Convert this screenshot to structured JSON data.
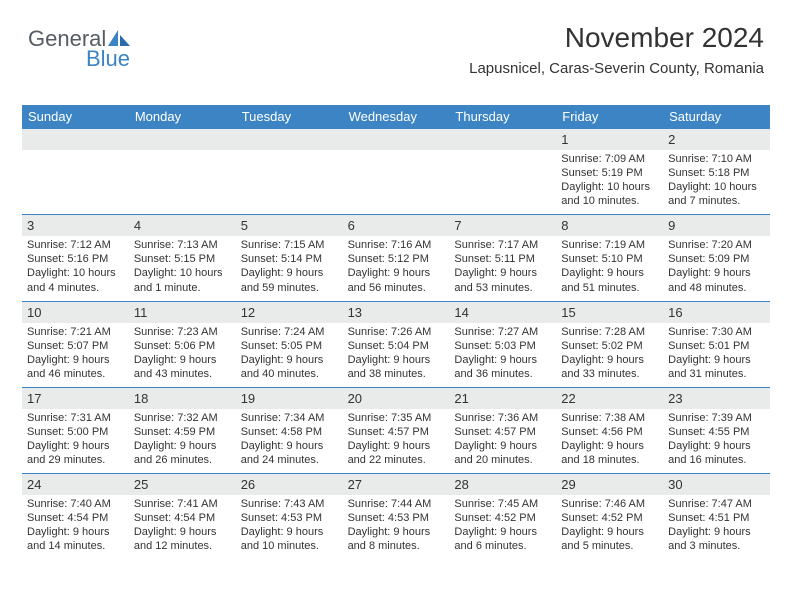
{
  "brand": {
    "name1": "General",
    "name2": "Blue",
    "accent": "#3d84c4",
    "textcolor": "#555c63"
  },
  "title": "November 2024",
  "subtitle": "Lapusnicel, Caras-Severin County, Romania",
  "day_headers": [
    "Sunday",
    "Monday",
    "Tuesday",
    "Wednesday",
    "Thursday",
    "Friday",
    "Saturday"
  ],
  "colors": {
    "header_bg": "#3d84c4",
    "header_text": "#ffffff",
    "daynum_bg": "#e9eaea",
    "rule": "#3d84c4",
    "text": "#333333"
  },
  "font_sizes": {
    "title": 28,
    "subtitle": 15,
    "dayhead": 13,
    "daynum": 13,
    "details": 11
  },
  "weeks": [
    [
      {
        "n": "",
        "sr": "",
        "ss": "",
        "dl1": "",
        "dl2": ""
      },
      {
        "n": "",
        "sr": "",
        "ss": "",
        "dl1": "",
        "dl2": ""
      },
      {
        "n": "",
        "sr": "",
        "ss": "",
        "dl1": "",
        "dl2": ""
      },
      {
        "n": "",
        "sr": "",
        "ss": "",
        "dl1": "",
        "dl2": ""
      },
      {
        "n": "",
        "sr": "",
        "ss": "",
        "dl1": "",
        "dl2": ""
      },
      {
        "n": "1",
        "sr": "Sunrise: 7:09 AM",
        "ss": "Sunset: 5:19 PM",
        "dl1": "Daylight: 10 hours",
        "dl2": "and 10 minutes."
      },
      {
        "n": "2",
        "sr": "Sunrise: 7:10 AM",
        "ss": "Sunset: 5:18 PM",
        "dl1": "Daylight: 10 hours",
        "dl2": "and 7 minutes."
      }
    ],
    [
      {
        "n": "3",
        "sr": "Sunrise: 7:12 AM",
        "ss": "Sunset: 5:16 PM",
        "dl1": "Daylight: 10 hours",
        "dl2": "and 4 minutes."
      },
      {
        "n": "4",
        "sr": "Sunrise: 7:13 AM",
        "ss": "Sunset: 5:15 PM",
        "dl1": "Daylight: 10 hours",
        "dl2": "and 1 minute."
      },
      {
        "n": "5",
        "sr": "Sunrise: 7:15 AM",
        "ss": "Sunset: 5:14 PM",
        "dl1": "Daylight: 9 hours",
        "dl2": "and 59 minutes."
      },
      {
        "n": "6",
        "sr": "Sunrise: 7:16 AM",
        "ss": "Sunset: 5:12 PM",
        "dl1": "Daylight: 9 hours",
        "dl2": "and 56 minutes."
      },
      {
        "n": "7",
        "sr": "Sunrise: 7:17 AM",
        "ss": "Sunset: 5:11 PM",
        "dl1": "Daylight: 9 hours",
        "dl2": "and 53 minutes."
      },
      {
        "n": "8",
        "sr": "Sunrise: 7:19 AM",
        "ss": "Sunset: 5:10 PM",
        "dl1": "Daylight: 9 hours",
        "dl2": "and 51 minutes."
      },
      {
        "n": "9",
        "sr": "Sunrise: 7:20 AM",
        "ss": "Sunset: 5:09 PM",
        "dl1": "Daylight: 9 hours",
        "dl2": "and 48 minutes."
      }
    ],
    [
      {
        "n": "10",
        "sr": "Sunrise: 7:21 AM",
        "ss": "Sunset: 5:07 PM",
        "dl1": "Daylight: 9 hours",
        "dl2": "and 46 minutes."
      },
      {
        "n": "11",
        "sr": "Sunrise: 7:23 AM",
        "ss": "Sunset: 5:06 PM",
        "dl1": "Daylight: 9 hours",
        "dl2": "and 43 minutes."
      },
      {
        "n": "12",
        "sr": "Sunrise: 7:24 AM",
        "ss": "Sunset: 5:05 PM",
        "dl1": "Daylight: 9 hours",
        "dl2": "and 40 minutes."
      },
      {
        "n": "13",
        "sr": "Sunrise: 7:26 AM",
        "ss": "Sunset: 5:04 PM",
        "dl1": "Daylight: 9 hours",
        "dl2": "and 38 minutes."
      },
      {
        "n": "14",
        "sr": "Sunrise: 7:27 AM",
        "ss": "Sunset: 5:03 PM",
        "dl1": "Daylight: 9 hours",
        "dl2": "and 36 minutes."
      },
      {
        "n": "15",
        "sr": "Sunrise: 7:28 AM",
        "ss": "Sunset: 5:02 PM",
        "dl1": "Daylight: 9 hours",
        "dl2": "and 33 minutes."
      },
      {
        "n": "16",
        "sr": "Sunrise: 7:30 AM",
        "ss": "Sunset: 5:01 PM",
        "dl1": "Daylight: 9 hours",
        "dl2": "and 31 minutes."
      }
    ],
    [
      {
        "n": "17",
        "sr": "Sunrise: 7:31 AM",
        "ss": "Sunset: 5:00 PM",
        "dl1": "Daylight: 9 hours",
        "dl2": "and 29 minutes."
      },
      {
        "n": "18",
        "sr": "Sunrise: 7:32 AM",
        "ss": "Sunset: 4:59 PM",
        "dl1": "Daylight: 9 hours",
        "dl2": "and 26 minutes."
      },
      {
        "n": "19",
        "sr": "Sunrise: 7:34 AM",
        "ss": "Sunset: 4:58 PM",
        "dl1": "Daylight: 9 hours",
        "dl2": "and 24 minutes."
      },
      {
        "n": "20",
        "sr": "Sunrise: 7:35 AM",
        "ss": "Sunset: 4:57 PM",
        "dl1": "Daylight: 9 hours",
        "dl2": "and 22 minutes."
      },
      {
        "n": "21",
        "sr": "Sunrise: 7:36 AM",
        "ss": "Sunset: 4:57 PM",
        "dl1": "Daylight: 9 hours",
        "dl2": "and 20 minutes."
      },
      {
        "n": "22",
        "sr": "Sunrise: 7:38 AM",
        "ss": "Sunset: 4:56 PM",
        "dl1": "Daylight: 9 hours",
        "dl2": "and 18 minutes."
      },
      {
        "n": "23",
        "sr": "Sunrise: 7:39 AM",
        "ss": "Sunset: 4:55 PM",
        "dl1": "Daylight: 9 hours",
        "dl2": "and 16 minutes."
      }
    ],
    [
      {
        "n": "24",
        "sr": "Sunrise: 7:40 AM",
        "ss": "Sunset: 4:54 PM",
        "dl1": "Daylight: 9 hours",
        "dl2": "and 14 minutes."
      },
      {
        "n": "25",
        "sr": "Sunrise: 7:41 AM",
        "ss": "Sunset: 4:54 PM",
        "dl1": "Daylight: 9 hours",
        "dl2": "and 12 minutes."
      },
      {
        "n": "26",
        "sr": "Sunrise: 7:43 AM",
        "ss": "Sunset: 4:53 PM",
        "dl1": "Daylight: 9 hours",
        "dl2": "and 10 minutes."
      },
      {
        "n": "27",
        "sr": "Sunrise: 7:44 AM",
        "ss": "Sunset: 4:53 PM",
        "dl1": "Daylight: 9 hours",
        "dl2": "and 8 minutes."
      },
      {
        "n": "28",
        "sr": "Sunrise: 7:45 AM",
        "ss": "Sunset: 4:52 PM",
        "dl1": "Daylight: 9 hours",
        "dl2": "and 6 minutes."
      },
      {
        "n": "29",
        "sr": "Sunrise: 7:46 AM",
        "ss": "Sunset: 4:52 PM",
        "dl1": "Daylight: 9 hours",
        "dl2": "and 5 minutes."
      },
      {
        "n": "30",
        "sr": "Sunrise: 7:47 AM",
        "ss": "Sunset: 4:51 PM",
        "dl1": "Daylight: 9 hours",
        "dl2": "and 3 minutes."
      }
    ]
  ]
}
